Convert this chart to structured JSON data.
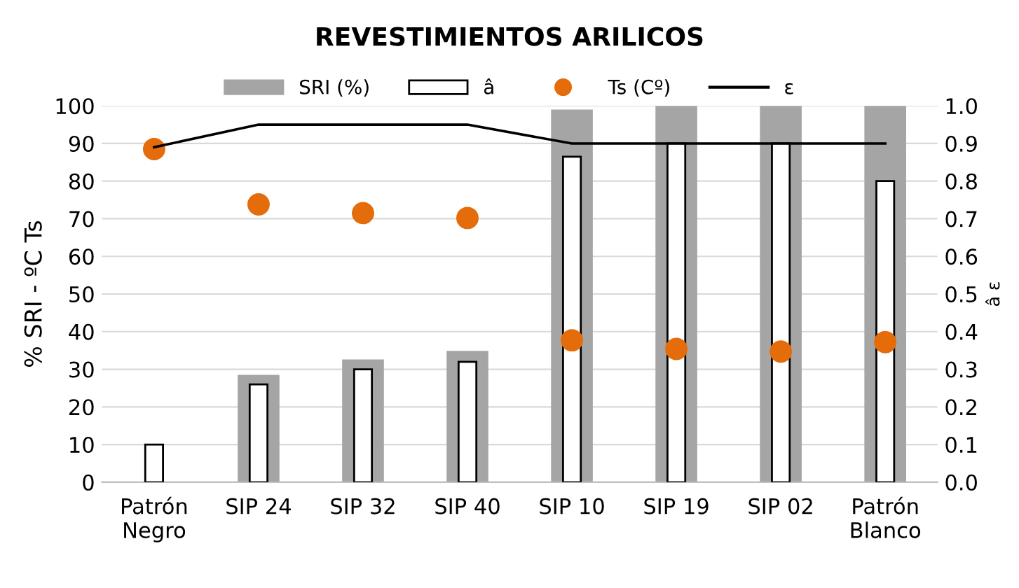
{
  "chart_data": {
    "type": "bar",
    "title": "REVESTIMIENTOS ARILICOS",
    "ylabel": "% SRI - ºC Ts",
    "y2label": "â ε",
    "categories": [
      "Patrón\nNegro",
      "SIP 24",
      "SIP 32",
      "SIP 40",
      "SIP 10",
      "SIP 19",
      "SIP 02",
      "Patrón\nBlanco"
    ],
    "series": [
      {
        "name": "SRI (%)",
        "color": "#a5a5a5",
        "values": [
          null,
          28.5,
          32.6,
          34.9,
          99,
          100,
          100,
          100
        ]
      },
      {
        "name": "â",
        "axis": "y2",
        "color": "#ffffff",
        "values": [
          0.1,
          0.26,
          0.3,
          0.32,
          0.865,
          0.9,
          0.9,
          0.8
        ]
      },
      {
        "name": "Ts (Cº)",
        "type": "scatter",
        "marker": "circle",
        "color": "#e46c0a",
        "values": [
          88.5,
          73.8,
          71.5,
          70.2,
          37.7,
          35.4,
          34.7,
          37.2
        ]
      },
      {
        "name": "ε",
        "type": "line",
        "axis": "y2",
        "color": "#000000",
        "values": [
          0.89,
          0.95,
          0.95,
          0.95,
          0.9,
          0.9,
          0.9,
          0.9
        ]
      }
    ],
    "ylim": [
      0,
      100
    ],
    "yticks": [
      0,
      10,
      20,
      30,
      40,
      50,
      60,
      70,
      80,
      90,
      100
    ],
    "y2lim": [
      0,
      1
    ],
    "y2ticks": [
      {
        "value": 0,
        "label": "0.0"
      },
      {
        "value": 0.1,
        "label": "0.1"
      },
      {
        "value": 0.2,
        "label": "0.2"
      },
      {
        "value": 0.3,
        "label": "0.3"
      },
      {
        "value": 0.4,
        "label": "0.4"
      },
      {
        "value": 0.5,
        "label": "0.5"
      },
      {
        "value": 0.6,
        "label": "0.6"
      },
      {
        "value": 0.7,
        "label": "0.7"
      },
      {
        "value": 0.8,
        "label": "0.8"
      },
      {
        "value": 0.9,
        "label": "0.9"
      },
      {
        "value": 1,
        "label": "1.0"
      }
    ],
    "grid": "y",
    "legend": "top"
  }
}
